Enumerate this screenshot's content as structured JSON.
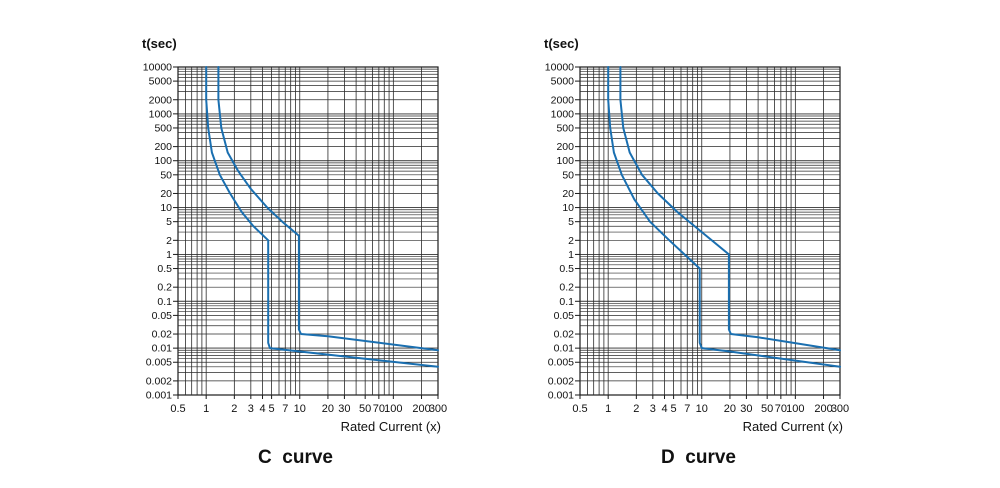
{
  "chart_data": [
    {
      "type": "line",
      "title": "C  curve",
      "xlabel": "Rated Current (x)",
      "ylabel": "t(sec)",
      "x_scale": "log",
      "y_scale": "log",
      "xlim": [
        0.5,
        300
      ],
      "ylim": [
        0.001,
        10000
      ],
      "grid": true,
      "x_ticks": [
        0.5,
        1,
        2,
        3,
        4,
        5,
        7,
        10,
        20,
        30,
        50,
        70,
        100,
        200,
        300
      ],
      "x_tick_labels": [
        "0.5",
        "1",
        "2",
        "3",
        "4",
        "5",
        "7",
        "10",
        "20",
        "30",
        "50",
        "70",
        "100",
        "200",
        "300"
      ],
      "y_ticks": [
        10000,
        5000,
        2000,
        1000,
        500,
        200,
        100,
        50,
        20,
        10,
        5,
        2,
        1,
        0.5,
        0.2,
        0.1,
        0.05,
        0.02,
        0.01,
        0.005,
        0.002,
        0.001
      ],
      "y_tick_labels": [
        "10000",
        "5000",
        "2000",
        "1000",
        "500",
        "200",
        "100",
        "50",
        "20",
        "10",
        "5",
        "2",
        "1",
        "0.5",
        "0.2",
        "0.1",
        "0.05",
        "0.02",
        "0.01",
        "0.005",
        "0.002",
        "0.001"
      ],
      "series": [
        {
          "color": "#1a6fb0",
          "points": [
            [
              1.0,
              10000
            ],
            [
              1.0,
              2000
            ],
            [
              1.05,
              500
            ],
            [
              1.15,
              150
            ],
            [
              1.4,
              50
            ],
            [
              1.8,
              20
            ],
            [
              2.4,
              8
            ],
            [
              3.2,
              4
            ],
            [
              4.6,
              2
            ],
            [
              4.6,
              0.013
            ],
            [
              4.8,
              0.01
            ],
            [
              10,
              0.0085
            ],
            [
              300,
              0.004
            ]
          ]
        },
        {
          "color": "#1a6fb0",
          "points": [
            [
              1.35,
              10000
            ],
            [
              1.35,
              2000
            ],
            [
              1.45,
              500
            ],
            [
              1.7,
              150
            ],
            [
              2.2,
              60
            ],
            [
              3.0,
              25
            ],
            [
              4.5,
              10
            ],
            [
              6.5,
              5
            ],
            [
              9.8,
              2.5
            ],
            [
              9.8,
              0.025
            ],
            [
              10.3,
              0.02
            ],
            [
              20,
              0.018
            ],
            [
              300,
              0.009
            ]
          ]
        }
      ]
    },
    {
      "type": "line",
      "title": "D  curve",
      "xlabel": "Rated Current (x)",
      "ylabel": "t(sec)",
      "x_scale": "log",
      "y_scale": "log",
      "xlim": [
        0.5,
        300
      ],
      "ylim": [
        0.001,
        10000
      ],
      "grid": true,
      "x_ticks": [
        0.5,
        1,
        2,
        3,
        4,
        5,
        7,
        10,
        20,
        30,
        50,
        70,
        100,
        200,
        300
      ],
      "x_tick_labels": [
        "0.5",
        "1",
        "2",
        "3",
        "4",
        "5",
        "7",
        "10",
        "20",
        "30",
        "50",
        "70",
        "100",
        "200",
        "300"
      ],
      "y_ticks": [
        10000,
        5000,
        2000,
        1000,
        500,
        200,
        100,
        50,
        20,
        10,
        5,
        2,
        1,
        0.5,
        0.2,
        0.1,
        0.05,
        0.02,
        0.01,
        0.005,
        0.002,
        0.001
      ],
      "y_tick_labels": [
        "10000",
        "5000",
        "2000",
        "1000",
        "500",
        "200",
        "100",
        "50",
        "20",
        "10",
        "5",
        "2",
        "1",
        "0.5",
        "0.2",
        "0.1",
        "0.05",
        "0.02",
        "0.01",
        "0.005",
        "0.002",
        "0.001"
      ],
      "series": [
        {
          "color": "#1a6fb0",
          "points": [
            [
              1.0,
              10000
            ],
            [
              1.0,
              2000
            ],
            [
              1.05,
              500
            ],
            [
              1.15,
              150
            ],
            [
              1.4,
              50
            ],
            [
              1.9,
              15
            ],
            [
              2.8,
              5
            ],
            [
              4.5,
              2
            ],
            [
              9.5,
              0.5
            ],
            [
              9.5,
              0.013
            ],
            [
              10,
              0.01
            ],
            [
              20,
              0.0085
            ],
            [
              300,
              0.004
            ]
          ]
        },
        {
          "color": "#1a6fb0",
          "points": [
            [
              1.35,
              10000
            ],
            [
              1.35,
              2000
            ],
            [
              1.45,
              500
            ],
            [
              1.7,
              150
            ],
            [
              2.3,
              50
            ],
            [
              3.4,
              20
            ],
            [
              5.5,
              8
            ],
            [
              10,
              3
            ],
            [
              19.5,
              1
            ],
            [
              19.5,
              0.025
            ],
            [
              20.5,
              0.02
            ],
            [
              40,
              0.017
            ],
            [
              300,
              0.009
            ]
          ]
        }
      ]
    }
  ]
}
